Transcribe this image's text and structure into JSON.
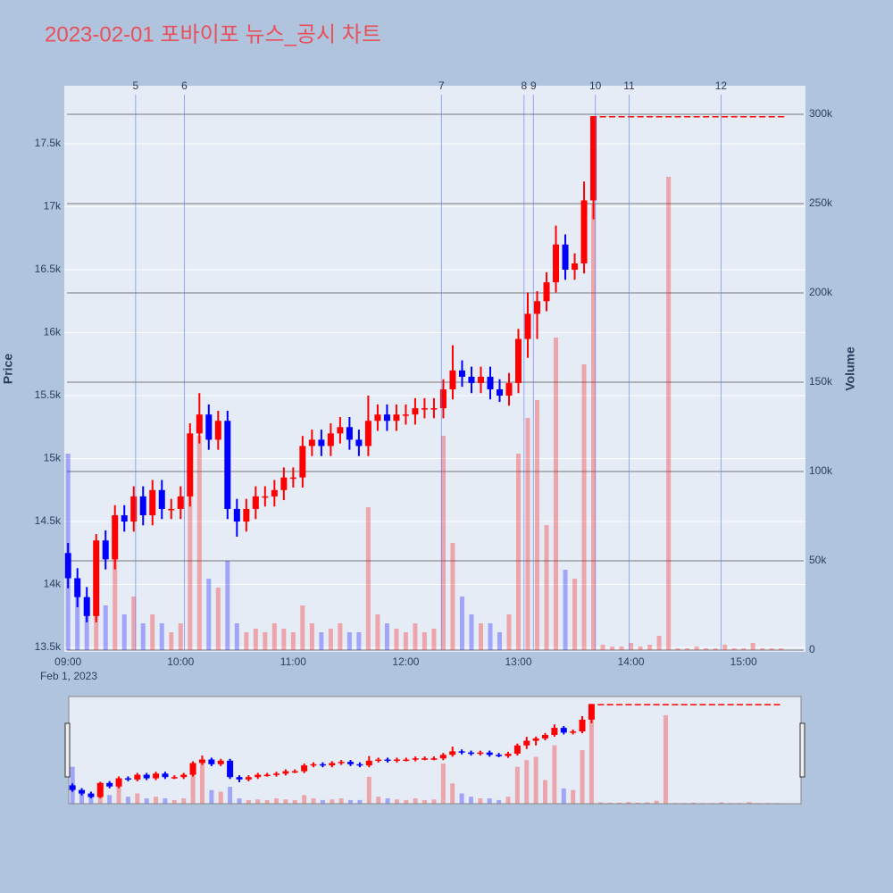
{
  "chart_data": {
    "type": "candlestick",
    "title": "2023-02-01 포바이포 뉴스_공시 차트",
    "y_title": "Price",
    "y2_title": "Volume",
    "date_label": "Feb 1, 2023",
    "increasing_color": "#ff0000",
    "decreasing_color": "#0000ff",
    "news_color": "#5a78f0",
    "grid": true,
    "xlim": [
      "08:58",
      "15:33"
    ],
    "xticks": [
      "09:00",
      "10:00",
      "11:00",
      "12:00",
      "13:00",
      "14:00",
      "15:00"
    ],
    "ylim": [
      13465,
      17961
    ],
    "yticks": [
      {
        "value": 13500,
        "label": "13.5k"
      },
      {
        "value": 14000,
        "label": "14k"
      },
      {
        "value": 14500,
        "label": "14.5k"
      },
      {
        "value": 15000,
        "label": "15k"
      },
      {
        "value": 15500,
        "label": "15.5k"
      },
      {
        "value": 16000,
        "label": "16k"
      },
      {
        "value": 16500,
        "label": "16.5k"
      },
      {
        "value": 17000,
        "label": "17k"
      },
      {
        "value": 17500,
        "label": "17.5k"
      }
    ],
    "y2lim": [
      -1000,
      316000
    ],
    "y2ticks": [
      0,
      {
        "value": 50000,
        "label": "50k"
      },
      {
        "value": 100000,
        "label": "100k"
      },
      {
        "value": 150000,
        "label": "150k"
      },
      {
        "value": 200000,
        "label": "200k"
      },
      {
        "value": 250000,
        "label": "250k"
      },
      {
        "value": 300000,
        "label": "300k"
      }
    ],
    "news": [
      {
        "label": "5",
        "x": "09:36"
      },
      {
        "label": "6",
        "x": "10:02"
      },
      {
        "label": "7",
        "x": "12:19"
      },
      {
        "label": "8",
        "x": "13:03"
      },
      {
        "label": "9",
        "x": "13:08"
      },
      {
        "label": "10",
        "x": "13:41"
      },
      {
        "label": "11",
        "x": "13:59"
      },
      {
        "label": "12",
        "x": "14:48"
      }
    ],
    "x": [
      "09:00",
      "09:05",
      "09:10",
      "09:15",
      "09:20",
      "09:25",
      "09:30",
      "09:35",
      "09:40",
      "09:45",
      "09:50",
      "09:55",
      "10:00",
      "10:05",
      "10:10",
      "10:15",
      "10:20",
      "10:25",
      "10:30",
      "10:35",
      "10:40",
      "10:45",
      "10:50",
      "10:55",
      "11:00",
      "11:05",
      "11:10",
      "11:15",
      "11:20",
      "11:25",
      "11:30",
      "11:35",
      "11:40",
      "11:45",
      "11:50",
      "11:55",
      "12:00",
      "12:05",
      "12:10",
      "12:15",
      "12:20",
      "12:25",
      "12:30",
      "12:35",
      "12:40",
      "12:45",
      "12:50",
      "12:55",
      "13:00",
      "13:05",
      "13:10",
      "13:15",
      "13:20",
      "13:25",
      "13:30",
      "13:35",
      "13:40",
      "13:45",
      "13:50",
      "13:55",
      "14:00",
      "14:05",
      "14:10",
      "14:15",
      "14:20",
      "14:25",
      "14:30",
      "14:35",
      "14:40",
      "14:45",
      "14:50",
      "14:55",
      "15:00",
      "15:05",
      "15:10",
      "15:15",
      "15:20"
    ],
    "open": [
      14250,
      14050,
      13900,
      13750,
      14350,
      14200,
      14550,
      14500,
      14700,
      14550,
      14750,
      14600,
      14600,
      14700,
      15200,
      15350,
      15150,
      15300,
      14600,
      14500,
      14600,
      14700,
      14700,
      14750,
      14850,
      14850,
      15100,
      15150,
      15100,
      15200,
      15250,
      15150,
      15100,
      15300,
      15350,
      15300,
      15350,
      15350,
      15400,
      15400,
      15400,
      15550,
      15700,
      15650,
      15600,
      15650,
      15550,
      15500,
      15600,
      15950,
      16150,
      16250,
      16400,
      16700,
      16500,
      16550,
      17050,
      17720,
      17720,
      17720,
      17720,
      17720,
      17720,
      17720,
      17720,
      17720,
      17720,
      17720,
      17720,
      17720,
      17720,
      17720,
      17720,
      17720,
      17720,
      17720,
      17720
    ],
    "high": [
      14330,
      14130,
      13980,
      14400,
      14430,
      14630,
      14630,
      14780,
      14780,
      14830,
      14830,
      14680,
      14780,
      15280,
      15520,
      15430,
      15380,
      15380,
      14680,
      14680,
      14780,
      14780,
      14830,
      14930,
      14930,
      15180,
      15230,
      15230,
      15280,
      15330,
      15330,
      15230,
      15500,
      15430,
      15430,
      15430,
      15430,
      15480,
      15480,
      15480,
      15630,
      15900,
      15780,
      15730,
      15730,
      15730,
      15630,
      15680,
      16030,
      16320,
      16330,
      16480,
      16850,
      16780,
      16630,
      17200,
      17720,
      17720,
      17720,
      17720,
      17720,
      17720,
      17720,
      17720,
      17720,
      17720,
      17720,
      17720,
      17720,
      17720,
      17720,
      17720,
      17720,
      17720,
      17720,
      17720,
      17720
    ],
    "low": [
      13970,
      13820,
      13700,
      13700,
      14120,
      14120,
      14420,
      14420,
      14470,
      14470,
      14520,
      14520,
      14520,
      14620,
      15120,
      15070,
      15070,
      14520,
      14380,
      14420,
      14520,
      14620,
      14620,
      14670,
      14770,
      14770,
      15020,
      15020,
      15020,
      15120,
      15070,
      15020,
      15020,
      15220,
      15220,
      15220,
      15270,
      15270,
      15320,
      15320,
      15320,
      15470,
      15570,
      15520,
      15520,
      15470,
      15450,
      15420,
      15520,
      15800,
      15950,
      16170,
      16320,
      16420,
      16420,
      16470,
      16900,
      17720,
      17720,
      17720,
      17720,
      17720,
      17720,
      17720,
      17720,
      17720,
      17720,
      17720,
      17720,
      17720,
      17720,
      17720,
      17720,
      17720,
      17720,
      17720,
      17720
    ],
    "close": [
      14050,
      13900,
      13750,
      14350,
      14200,
      14550,
      14500,
      14700,
      14550,
      14750,
      14600,
      14600,
      14700,
      15200,
      15350,
      15150,
      15300,
      14600,
      14500,
      14600,
      14700,
      14700,
      14750,
      14850,
      14850,
      15100,
      15150,
      15100,
      15200,
      15250,
      15150,
      15100,
      15300,
      15350,
      15300,
      15350,
      15350,
      15400,
      15400,
      15400,
      15550,
      15700,
      15650,
      15600,
      15650,
      15550,
      15500,
      15600,
      15950,
      16150,
      16250,
      16400,
      16700,
      16500,
      16550,
      17050,
      17720,
      17720,
      17720,
      17720,
      17720,
      17720,
      17720,
      17720,
      17720,
      17720,
      17720,
      17720,
      17720,
      17720,
      17720,
      17720,
      17720,
      17720,
      17720,
      17720,
      17720
    ],
    "volume": [
      110000,
      30000,
      20000,
      45000,
      25000,
      70000,
      20000,
      30000,
      15000,
      20000,
      15000,
      10000,
      15000,
      90000,
      120000,
      40000,
      35000,
      50000,
      15000,
      10000,
      12000,
      10000,
      15000,
      12000,
      10000,
      25000,
      15000,
      10000,
      12000,
      15000,
      10000,
      10000,
      80000,
      20000,
      15000,
      12000,
      10000,
      15000,
      10000,
      12000,
      120000,
      60000,
      30000,
      20000,
      15000,
      15000,
      10000,
      20000,
      110000,
      130000,
      140000,
      70000,
      175000,
      45000,
      40000,
      160000,
      250000,
      3000,
      2000,
      2000,
      4000,
      2000,
      3000,
      8000,
      265000,
      1000,
      1000,
      2000,
      1000,
      1000,
      3000,
      1000,
      1000,
      4000,
      1000,
      1000,
      1000
    ]
  }
}
